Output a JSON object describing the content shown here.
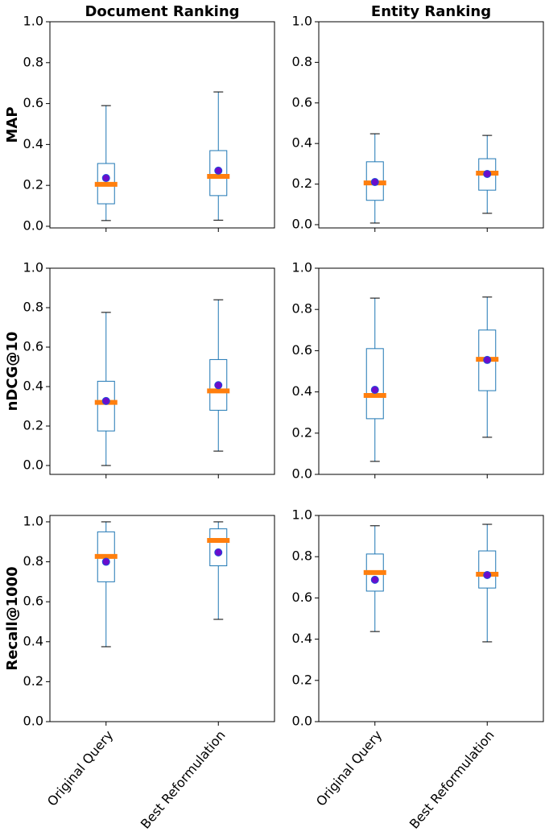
{
  "chart_data": [
    {
      "type": "box",
      "title": "Document Ranking",
      "ylabel": "MAP",
      "boxes": [
        {
          "low": 0.028,
          "q1": 0.11,
          "median": 0.205,
          "q3": 0.307,
          "high": 0.59,
          "mean": 0.236
        },
        {
          "low": 0.03,
          "q1": 0.15,
          "median": 0.244,
          "q3": 0.37,
          "high": 0.657,
          "mean": 0.272
        }
      ],
      "ylim": [
        -0.008,
        1.0
      ],
      "yticks": [
        {
          "value": 0,
          "label": "0.0"
        },
        0.2,
        0.4,
        0.6,
        0.8,
        {
          "value": 1,
          "label": "1.0"
        }
      ],
      "box_color": "#1f77b4",
      "median_color": "#ff7f0e",
      "mean_color": "#6a0dcc"
    },
    {
      "type": "box",
      "title": "Entity Ranking",
      "boxes": [
        {
          "low": 0.008,
          "q1": 0.12,
          "median": 0.206,
          "q3": 0.31,
          "high": 0.448,
          "mean": 0.21
        },
        {
          "low": 0.056,
          "q1": 0.17,
          "median": 0.254,
          "q3": 0.325,
          "high": 0.44,
          "mean": 0.25
        }
      ],
      "ylim": [
        -0.016,
        1.0
      ],
      "yticks": [
        {
          "value": 0,
          "label": "0.0"
        },
        0.2,
        0.4,
        0.6,
        0.8,
        {
          "value": 1,
          "label": "1.0"
        }
      ],
      "box_color": "#1f77b4",
      "median_color": "#ff7f0e",
      "mean_color": "#6a0dcc"
    },
    {
      "type": "box",
      "ylabel": "nDCG@10",
      "boxes": [
        {
          "low": 0.0,
          "q1": 0.175,
          "median": 0.32,
          "q3": 0.427,
          "high": 0.776,
          "mean": 0.327
        },
        {
          "low": 0.073,
          "q1": 0.28,
          "median": 0.378,
          "q3": 0.537,
          "high": 0.84,
          "mean": 0.407
        }
      ],
      "ylim": [
        -0.045,
        1.0
      ],
      "yticks": [
        {
          "value": 0,
          "label": "0.0"
        },
        0.2,
        0.4,
        0.6,
        0.8,
        {
          "value": 1,
          "label": "1.0"
        }
      ],
      "box_color": "#1f77b4",
      "median_color": "#ff7f0e",
      "mean_color": "#6a0dcc"
    },
    {
      "type": "box",
      "boxes": [
        {
          "low": 0.063,
          "q1": 0.27,
          "median": 0.383,
          "q3": 0.61,
          "high": 0.855,
          "mean": 0.41
        },
        {
          "low": 0.18,
          "q1": 0.406,
          "median": 0.558,
          "q3": 0.7,
          "high": 0.86,
          "mean": 0.555
        }
      ],
      "ylim": [
        0,
        1.0
      ],
      "yticks": [
        {
          "value": 0,
          "label": "0.0"
        },
        0.2,
        0.4,
        0.6,
        0.8,
        {
          "value": 1,
          "label": "1.0"
        }
      ],
      "box_color": "#1f77b4",
      "median_color": "#ff7f0e",
      "mean_color": "#6a0dcc"
    },
    {
      "type": "box",
      "ylabel": "Recall@1000",
      "categories": [
        "Original Query",
        "Best Reformulation"
      ],
      "boxes": [
        {
          "low": 0.375,
          "q1": 0.7,
          "median": 0.827,
          "q3": 0.95,
          "high": 1.0,
          "mean": 0.8
        },
        {
          "low": 0.512,
          "q1": 0.78,
          "median": 0.907,
          "q3": 0.965,
          "high": 1.0,
          "mean": 0.847
        }
      ],
      "ylim": [
        0,
        1.032
      ],
      "yticks": [
        {
          "value": 0,
          "label": "0.0"
        },
        0.2,
        0.4,
        0.6,
        0.8,
        {
          "value": 1,
          "label": "1.0"
        }
      ],
      "box_color": "#1f77b4",
      "median_color": "#ff7f0e",
      "mean_color": "#6a0dcc"
    },
    {
      "type": "box",
      "categories": [
        "Original Query",
        "Best Reformulation"
      ],
      "boxes": [
        {
          "low": 0.437,
          "q1": 0.633,
          "median": 0.723,
          "q3": 0.813,
          "high": 0.95,
          "mean": 0.688
        },
        {
          "low": 0.387,
          "q1": 0.648,
          "median": 0.715,
          "q3": 0.828,
          "high": 0.957,
          "mean": 0.711
        }
      ],
      "ylim": [
        0,
        1.0
      ],
      "yticks": [
        {
          "value": 0,
          "label": "0.0"
        },
        0.2,
        0.4,
        0.6,
        0.8,
        {
          "value": 1,
          "label": "1.0"
        }
      ],
      "box_color": "#1f77b4",
      "median_color": "#ff7f0e",
      "mean_color": "#6a0dcc"
    }
  ]
}
